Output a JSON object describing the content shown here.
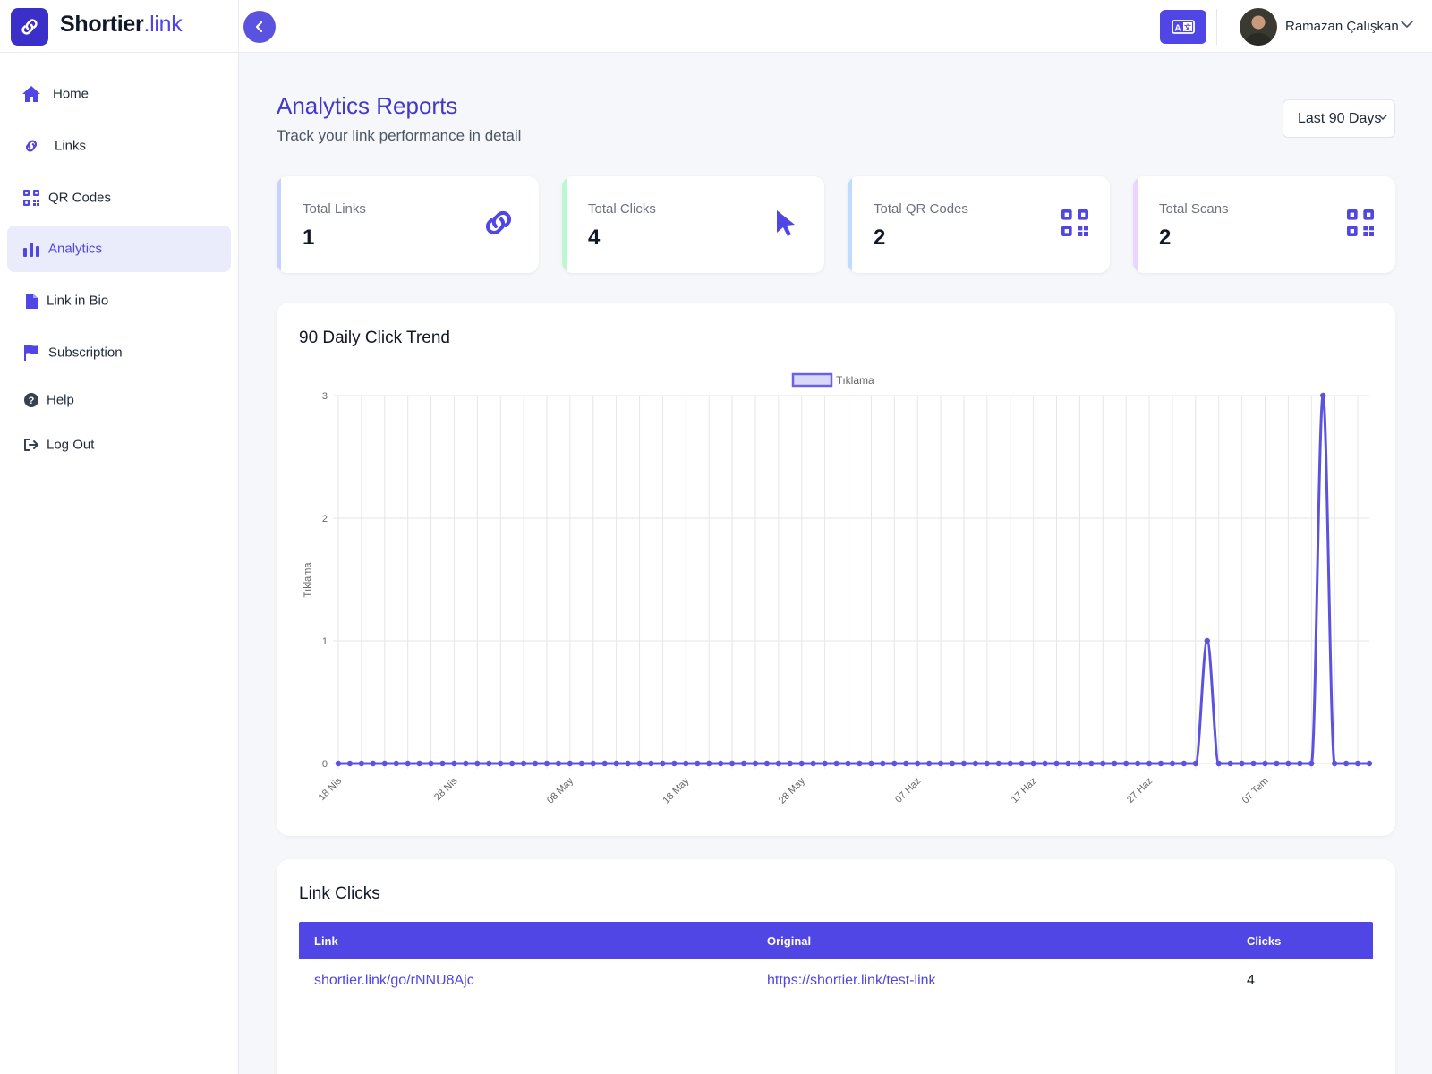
{
  "brand": {
    "name": "Shortier",
    "suffix": ".link"
  },
  "header": {
    "user_name": "Ramazan Çalışkan",
    "language_icon": "translate-icon",
    "collapse_icon": "chevron-left-icon"
  },
  "sidebar": {
    "items": [
      {
        "label": "Home",
        "icon": "home-icon"
      },
      {
        "label": "Links",
        "icon": "link-icon"
      },
      {
        "label": "QR Codes",
        "icon": "qr-code-icon"
      },
      {
        "label": "Analytics",
        "icon": "bar-chart-icon",
        "active": true
      },
      {
        "label": "Link in Bio",
        "icon": "document-icon"
      },
      {
        "label": "Subscription",
        "icon": "flag-icon"
      },
      {
        "label": "Help",
        "icon": "question-circle-icon"
      },
      {
        "label": "Log Out",
        "icon": "logout-icon"
      }
    ]
  },
  "page": {
    "title": "Analytics Reports",
    "subtitle": "Track your link performance in detail",
    "range": "Last 90 Days"
  },
  "stats": [
    {
      "label": "Total Links",
      "value": "1",
      "icon": "link-icon",
      "edge_color": "#c7d2fe"
    },
    {
      "label": "Total Clicks",
      "value": "4",
      "icon": "cursor-icon",
      "edge_color": "#bbf7d0"
    },
    {
      "label": "Total QR Codes",
      "value": "2",
      "icon": "qr-code-icon",
      "edge_color": "#bfdbfe"
    },
    {
      "label": "Total Scans",
      "value": "2",
      "icon": "qr-code-icon",
      "edge_color": "#e9d5ff"
    }
  ],
  "trend": {
    "title": "90 Daily Click Trend"
  },
  "chart_data": {
    "type": "line",
    "legend": "Tıklama",
    "legend_position": "top",
    "ylabel": "Tıklama",
    "ylim": [
      0,
      3
    ],
    "yticks": [
      "0",
      "1",
      "2",
      "3"
    ],
    "xtick_labels": [
      "18 Nis",
      "28 Nis",
      "08 May",
      "18 May",
      "28 May",
      "07 Haz",
      "17 Haz",
      "27 Haz",
      "07 Tem"
    ],
    "grid": true,
    "color": "#5b53e0",
    "series": [
      {
        "values": [
          0,
          0,
          0,
          0,
          0,
          0,
          0,
          0,
          0,
          0,
          0,
          0,
          0,
          0,
          0,
          0,
          0,
          0,
          0,
          0,
          0,
          0,
          0,
          0,
          0,
          0,
          0,
          0,
          0,
          0,
          0,
          0,
          0,
          0,
          0,
          0,
          0,
          0,
          0,
          0,
          0,
          0,
          0,
          0,
          0,
          0,
          0,
          0,
          0,
          0,
          0,
          0,
          0,
          0,
          0,
          0,
          0,
          0,
          0,
          0,
          0,
          0,
          0,
          0,
          0,
          0,
          0,
          0,
          0,
          0,
          0,
          0,
          0,
          0,
          0,
          1,
          0,
          0,
          0,
          0,
          0,
          0,
          0,
          0,
          0,
          3,
          0,
          0,
          0,
          0
        ]
      }
    ]
  },
  "link_clicks": {
    "title": "Link Clicks",
    "columns": [
      "Link",
      "Original",
      "Clicks"
    ],
    "rows": [
      {
        "link": "shortier.link/go/rNNU8Ajc",
        "original": "https://shortier.link/test-link",
        "clicks": "4"
      }
    ]
  }
}
